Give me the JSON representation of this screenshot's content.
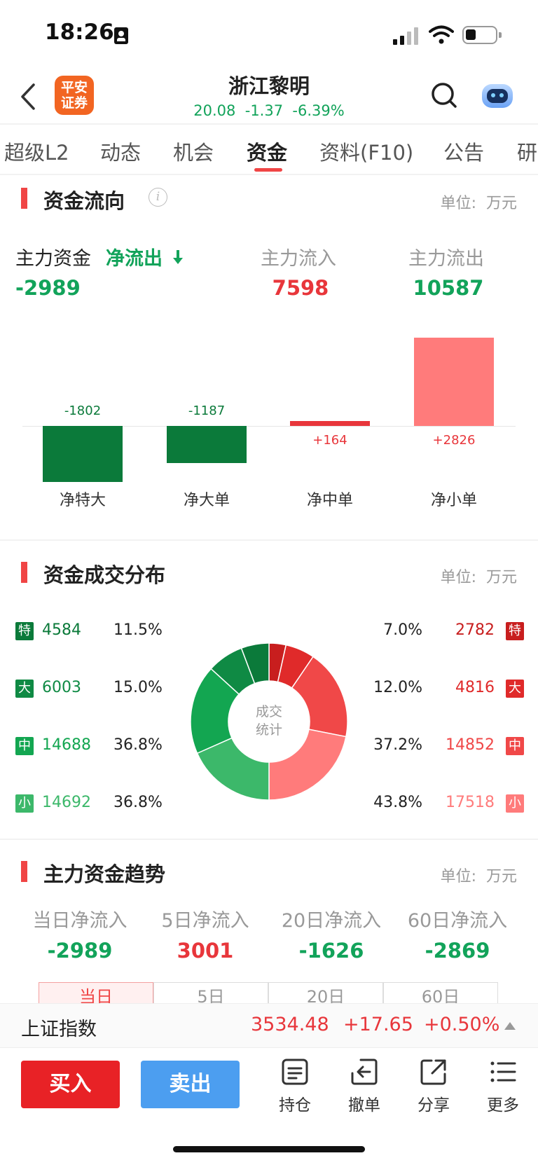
{
  "status": {
    "time": "18:26"
  },
  "header": {
    "logo_text_1": "平安",
    "logo_text_2": "证券",
    "stock_name": "浙江黎明",
    "quote": "20.08  -1.37  -6.39%"
  },
  "tabs": [
    "超级L2",
    "动态",
    "机会",
    "资金",
    "资料(F10)",
    "公告",
    "研"
  ],
  "active_tab": "资金",
  "flow": {
    "title": "资金流向",
    "unit": "单位:  万元",
    "main_label": "主力资金",
    "net_label": "净流出",
    "net_value": "-2989",
    "in_label": "主力流入",
    "in_value": "7598",
    "out_label": "主力流出",
    "out_value": "10587"
  },
  "chart_data": {
    "type": "bar",
    "categories": [
      "净特大",
      "净大单",
      "净中单",
      "净小单"
    ],
    "values": [
      -1802,
      -1187,
      164,
      2826
    ],
    "value_labels": [
      "-1802",
      "-1187",
      "+164",
      "+2826"
    ],
    "colors": [
      "#0b7a3a",
      "#0b7a3a",
      "#e8363b",
      "#ff7b7b"
    ]
  },
  "dist": {
    "title": "资金成交分布",
    "unit": "单位:  万元",
    "center_1": "成交",
    "center_2": "统计",
    "left": [
      {
        "badge": "特",
        "value": "4584",
        "pct": "11.5%",
        "color": "#0b7a3a"
      },
      {
        "badge": "大",
        "value": "6003",
        "pct": "15.0%",
        "color": "#0f8a44"
      },
      {
        "badge": "中",
        "value": "14688",
        "pct": "36.8%",
        "color": "#13a651"
      },
      {
        "badge": "小",
        "value": "14692",
        "pct": "36.8%",
        "color": "#3cb86a"
      }
    ],
    "right": [
      {
        "badge": "特",
        "value": "2782",
        "pct": "7.0%",
        "color": "#c81e1e"
      },
      {
        "badge": "大",
        "value": "4816",
        "pct": "12.0%",
        "color": "#e02a2a"
      },
      {
        "badge": "中",
        "value": "14852",
        "pct": "37.2%",
        "color": "#f04848"
      },
      {
        "badge": "小",
        "value": "17518",
        "pct": "43.8%",
        "color": "#ff7b7b"
      }
    ]
  },
  "trend": {
    "title": "主力资金趋势",
    "unit": "单位:  万元",
    "items": [
      {
        "label": "当日净流入",
        "value": "-2989",
        "color": "#12a35a"
      },
      {
        "label": "5日净流入",
        "value": "3001",
        "color": "#e8363b"
      },
      {
        "label": "20日净流入",
        "value": "-1626",
        "color": "#12a35a"
      },
      {
        "label": "60日净流入",
        "value": "-2869",
        "color": "#12a35a"
      }
    ],
    "segments": [
      "当日",
      "5日",
      "20日",
      "60日"
    ]
  },
  "index_bar": {
    "name": "上证指数",
    "value": "3534.48",
    "change": "+17.65",
    "pct": "+0.50%"
  },
  "toolbar": {
    "buy": "买入",
    "sell": "卖出",
    "hold": "持仓",
    "cancel": "撤单",
    "share": "分享",
    "more": "更多"
  }
}
